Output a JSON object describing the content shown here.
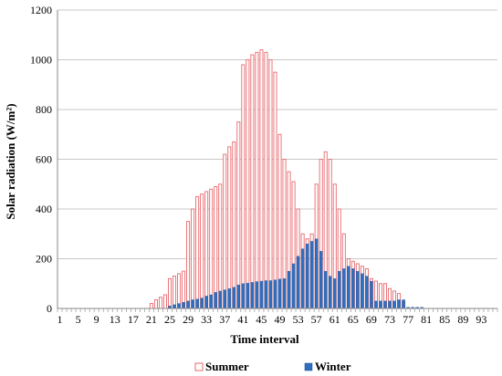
{
  "chart_data": {
    "type": "bar",
    "xlabel": "Time interval",
    "ylabel": "Solar radiation (W/m²)",
    "ylim": [
      0,
      1200
    ],
    "yticks": [
      0,
      200,
      400,
      600,
      800,
      1000,
      1200
    ],
    "grid": "horizontal",
    "legend_position": "bottom",
    "x": [
      1,
      2,
      3,
      4,
      5,
      6,
      7,
      8,
      9,
      10,
      11,
      12,
      13,
      14,
      15,
      16,
      17,
      18,
      19,
      20,
      21,
      22,
      23,
      24,
      25,
      26,
      27,
      28,
      29,
      30,
      31,
      32,
      33,
      34,
      35,
      36,
      37,
      38,
      39,
      40,
      41,
      42,
      43,
      44,
      45,
      46,
      47,
      48,
      49,
      50,
      51,
      52,
      53,
      54,
      55,
      56,
      57,
      58,
      59,
      60,
      61,
      62,
      63,
      64,
      65,
      66,
      67,
      68,
      69,
      70,
      71,
      72,
      73,
      74,
      75,
      76,
      77,
      78,
      79,
      80,
      81,
      82,
      83,
      84,
      85,
      86,
      87,
      88,
      89,
      90,
      91,
      92,
      93,
      94,
      95,
      96
    ],
    "xtick_labels": [
      "1",
      "5",
      "9",
      "13",
      "17",
      "21",
      "25",
      "29",
      "33",
      "37",
      "41",
      "45",
      "49",
      "53",
      "57",
      "61",
      "65",
      "69",
      "73",
      "77",
      "81",
      "85",
      "89",
      "93"
    ],
    "series": [
      {
        "name": "Summer",
        "color": "#e8696e",
        "values": [
          0,
          0,
          0,
          0,
          0,
          0,
          0,
          0,
          0,
          0,
          0,
          0,
          0,
          0,
          0,
          0,
          0,
          0,
          0,
          0,
          20,
          35,
          45,
          55,
          120,
          130,
          140,
          150,
          350,
          400,
          450,
          460,
          470,
          480,
          490,
          500,
          620,
          650,
          670,
          750,
          980,
          1000,
          1020,
          1030,
          1040,
          1030,
          1000,
          950,
          700,
          600,
          550,
          510,
          400,
          300,
          280,
          300,
          500,
          600,
          630,
          600,
          500,
          400,
          300,
          200,
          190,
          180,
          170,
          160,
          120,
          110,
          100,
          100,
          80,
          70,
          60,
          30,
          0,
          0,
          0,
          0,
          0,
          0,
          0,
          0,
          0,
          0,
          0,
          0,
          0,
          0,
          0,
          0,
          0,
          0,
          0,
          0
        ]
      },
      {
        "name": "Winter",
        "color": "#2e6fc0",
        "values": [
          0,
          0,
          0,
          0,
          0,
          0,
          0,
          0,
          0,
          0,
          0,
          0,
          0,
          0,
          0,
          0,
          0,
          0,
          0,
          0,
          0,
          0,
          0,
          0,
          10,
          15,
          20,
          25,
          30,
          35,
          38,
          42,
          50,
          55,
          65,
          70,
          75,
          80,
          85,
          95,
          100,
          102,
          105,
          108,
          110,
          112,
          112,
          115,
          118,
          120,
          150,
          180,
          210,
          240,
          260,
          270,
          280,
          230,
          150,
          130,
          120,
          150,
          160,
          170,
          160,
          150,
          140,
          130,
          110,
          30,
          30,
          30,
          30,
          30,
          35,
          35,
          5,
          5,
          5,
          5,
          0,
          0,
          0,
          0,
          0,
          0,
          0,
          0,
          0,
          0,
          0,
          0,
          0,
          0,
          0,
          0
        ]
      }
    ]
  }
}
